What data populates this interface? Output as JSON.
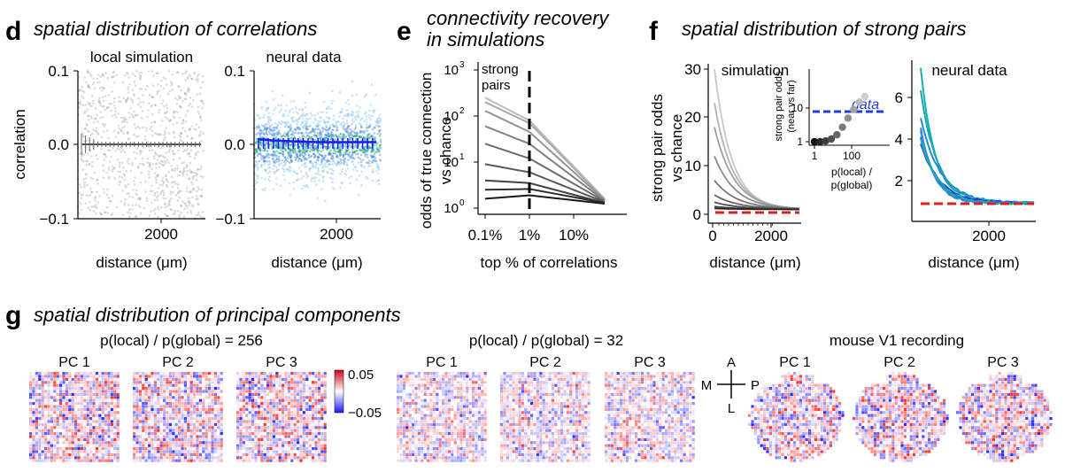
{
  "panels": {
    "d": {
      "letter": "d",
      "title": "spatial distribution of correlations",
      "sub_left": "local simulation",
      "sub_right": "neural data",
      "ylabel": "correlation",
      "xlabel": "distance (μm)",
      "yticks": [
        "0.1",
        "0.0",
        "−0.1"
      ],
      "xtick": "2000"
    },
    "e": {
      "letter": "e",
      "title_line1": "connectivity recovery",
      "title_line2": "in simulations",
      "ylabel_line1": "odds of true connection",
      "ylabel_line2": "vs chance",
      "xlabel": "top % of correlations",
      "xticks": [
        "0.1%",
        "1%",
        "10%"
      ],
      "annotation_line1": "strong",
      "annotation_line2": "pairs"
    },
    "f": {
      "letter": "f",
      "title": "spatial distribution of strong pairs",
      "sub_left": "simulation",
      "sub_right": "neural data",
      "ylabel_line1": "strong pair odds",
      "ylabel_line2": "vs chance",
      "xlabel": "distance (μm)",
      "xtick": "2000",
      "yticks_left": [
        "30",
        "20",
        "10",
        "0"
      ],
      "yticks_right": [
        "6",
        "4",
        "2"
      ],
      "inset": {
        "ylabel_line1": "strong pair odds",
        "ylabel_line2": "(near vs far)",
        "xlabel_line1": "p(local) /",
        "xlabel_line2": "p(global)",
        "yticks": [
          "10",
          "1"
        ],
        "xticks": [
          "1",
          "100"
        ],
        "data_label": "data"
      }
    },
    "g": {
      "letter": "g",
      "title": "spatial distribution of principal components",
      "group1": "p(local) / p(global) = 256",
      "group2": "p(local) / p(global) = 32",
      "group3": "mouse V1 recording",
      "pcs": [
        "PC 1",
        "PC 2",
        "PC 3"
      ],
      "colorbar": {
        "max": "0.05",
        "min": "−0.05"
      },
      "compass": {
        "top": "A",
        "bottom": "L",
        "left": "M",
        "right": "P"
      }
    }
  },
  "chart_data": [
    {
      "type": "scatter",
      "panel": "d-left",
      "title": "local simulation",
      "xlabel": "distance (μm)",
      "ylabel": "correlation",
      "xlim": [
        0,
        3000
      ],
      "ylim": [
        -0.1,
        0.1
      ],
      "mean_line": {
        "x": [
          100,
          2900
        ],
        "y": [
          0.0,
          0.0
        ]
      }
    },
    {
      "type": "scatter",
      "panel": "d-right",
      "title": "neural data",
      "xlabel": "distance (μm)",
      "ylim": [
        -0.1,
        0.1
      ],
      "mean_line": {
        "x": [
          100,
          500,
          1000,
          1500,
          2000,
          2500,
          2900
        ],
        "y": [
          0.007,
          0.005,
          0.004,
          0.003,
          0.003,
          0.003,
          0.003
        ]
      }
    },
    {
      "type": "line",
      "panel": "e",
      "log_x": true,
      "log_y": true,
      "xlabel": "top % of correlations",
      "ylabel": "odds of true connection vs chance",
      "ylim": [
        1,
        1000
      ],
      "x": [
        0.1,
        1,
        50
      ],
      "series": [
        {
          "values": [
            250,
            80,
            1.6
          ]
        },
        {
          "values": [
            200,
            70,
            1.55
          ]
        },
        {
          "values": [
            130,
            45,
            1.5
          ]
        },
        {
          "values": [
            60,
            25,
            1.45
          ]
        },
        {
          "values": [
            25,
            12,
            1.4
          ]
        },
        {
          "values": [
            9,
            6,
            1.35
          ]
        },
        {
          "values": [
            4,
            3.5,
            1.3
          ]
        },
        {
          "values": [
            2.5,
            2.6,
            1.3
          ]
        },
        {
          "values": [
            1.6,
            1.9,
            1.25
          ]
        }
      ],
      "vline_x": 1
    },
    {
      "type": "line",
      "panel": "f-left",
      "title": "simulation",
      "xlabel": "distance (μm)",
      "ylabel": "strong pair odds vs chance",
      "ylim": [
        0,
        31
      ],
      "xlim": [
        0,
        2900
      ],
      "chance_line": 1,
      "peak_values": [
        30,
        23,
        18,
        12,
        7,
        4,
        2.5,
        1.6,
        1.2
      ]
    },
    {
      "type": "scatter",
      "panel": "f-inset",
      "log_x": true,
      "log_y": true,
      "xlabel": "p(local) / p(global)",
      "ylabel": "strong pair odds (near vs far)",
      "x": [
        1,
        2,
        4,
        8,
        16,
        32,
        64,
        128,
        256,
        512
      ],
      "y": [
        1,
        1,
        1.05,
        1.2,
        1.6,
        2.7,
        5,
        9,
        15,
        22
      ],
      "data_line": 6
    },
    {
      "type": "line",
      "panel": "f-right",
      "title": "neural data",
      "xlabel": "distance (μm)",
      "ylim": [
        0,
        7.5
      ],
      "xlim": [
        0,
        2900
      ],
      "chance_line": 1,
      "peak_values": [
        7.2,
        6.1,
        4.8,
        4.4,
        4.0,
        3.6
      ]
    }
  ]
}
